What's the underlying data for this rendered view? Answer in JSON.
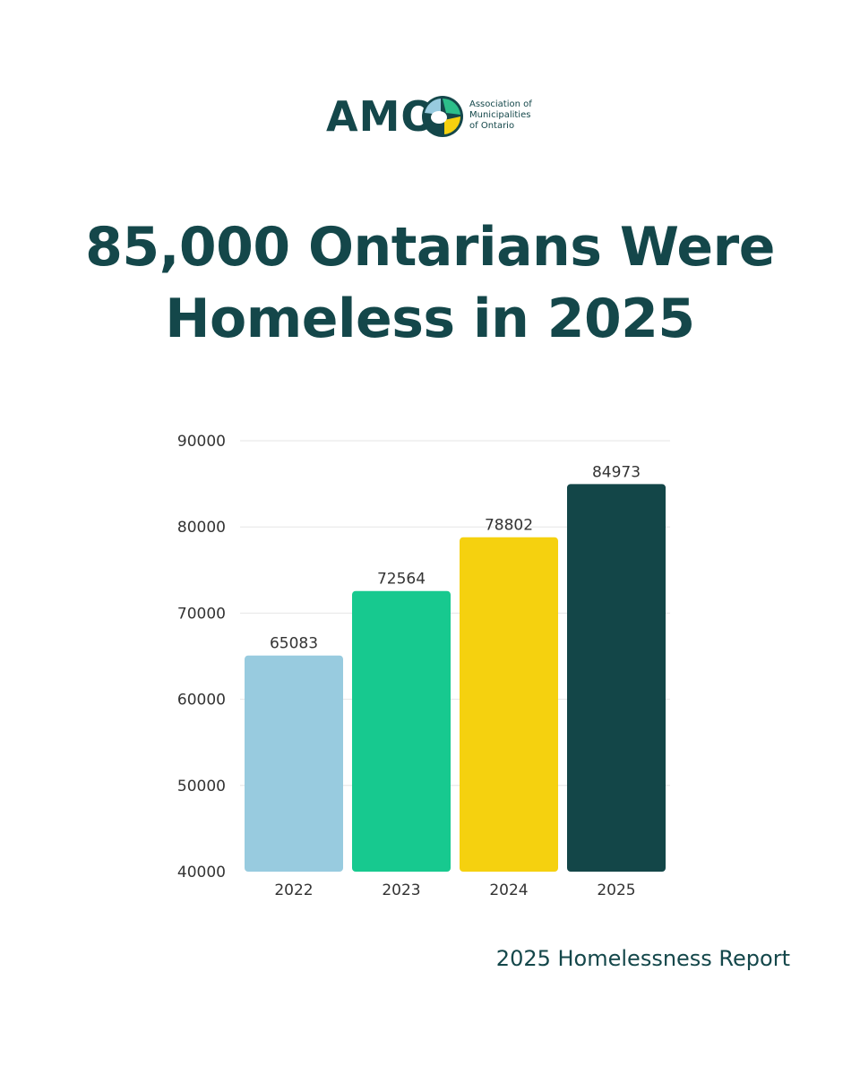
{
  "logo": {
    "letters": "AMO",
    "line1": "Association of",
    "line2": "Municipalities",
    "line3": "of Ontario"
  },
  "headline": {
    "line1": "85,000 Ontarians Were",
    "line2": "Homeless in 2025"
  },
  "chart_data": {
    "type": "bar",
    "categories": [
      "2022",
      "2023",
      "2024",
      "2025"
    ],
    "values": [
      65083,
      72564,
      78802,
      84973
    ],
    "colors": [
      "#98cbdf",
      "#17c98f",
      "#f5d10f",
      "#134648"
    ],
    "data_labels": [
      "65083",
      "72564",
      "78802",
      "84973"
    ],
    "yticks": [
      "40000",
      "50000",
      "60000",
      "70000",
      "80000",
      "90000"
    ],
    "ylim": [
      40000,
      90000
    ],
    "grid": true,
    "title": "",
    "xlabel": "",
    "ylabel": ""
  },
  "footer": {
    "source": "2025 Homelessness Report"
  },
  "colors": {
    "brand_dark": "#14474a",
    "grid": "#e6e6e6",
    "tick_text": "#333333"
  }
}
